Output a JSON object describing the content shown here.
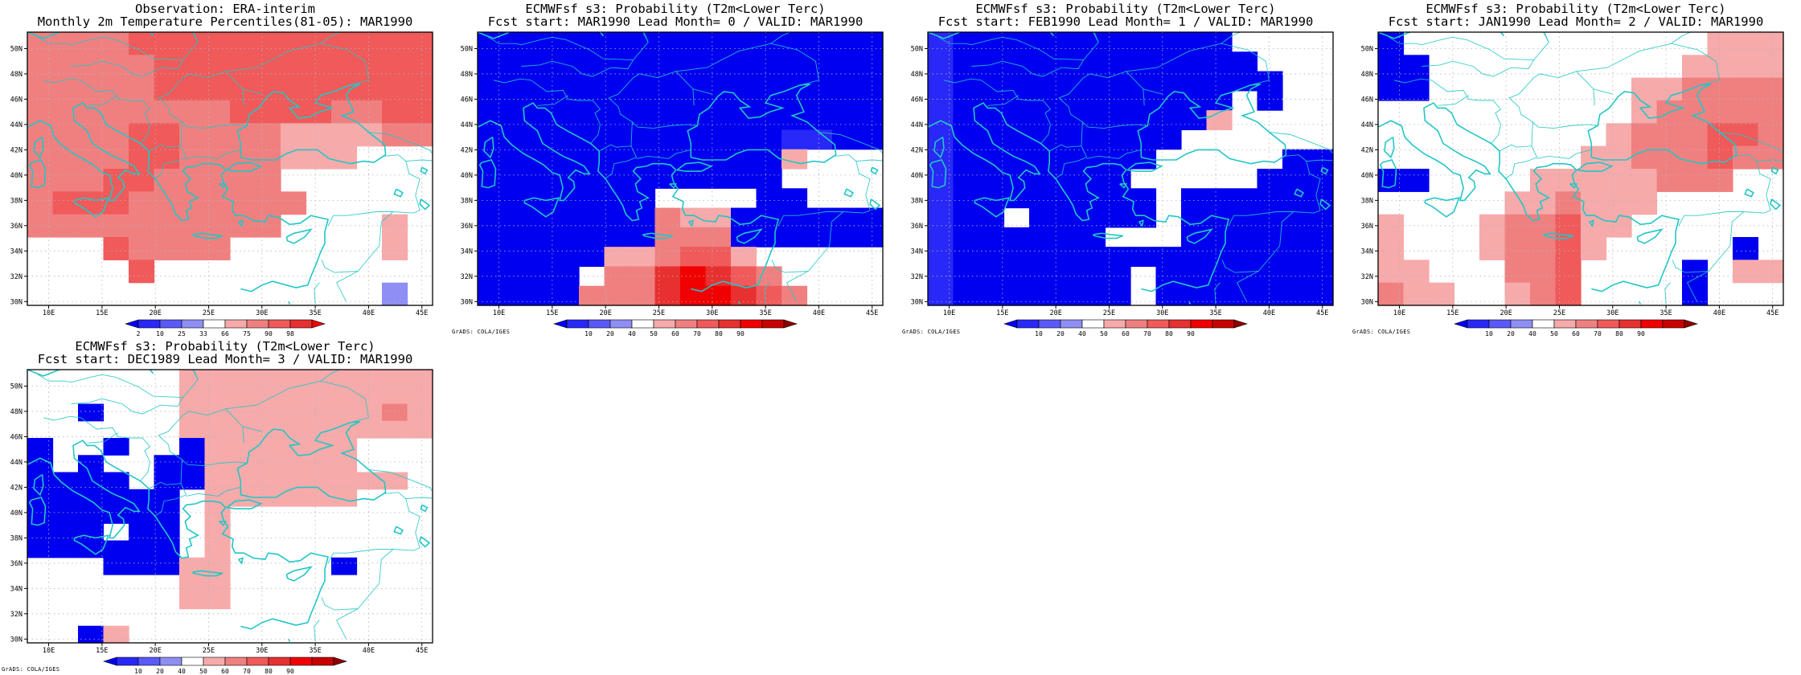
{
  "colors": {
    "coast": "#22c6c6",
    "frame": "#000000",
    "grid": "#b4b4b4",
    "palette_obs": [
      "#0000f0",
      "#2828f8",
      "#5a5af8",
      "#8e8ef4",
      "#ffffff",
      "#f7aaaa",
      "#f08080",
      "#f05a5a",
      "#e83030",
      "#f00000"
    ],
    "palette_prob": [
      "#0000f0",
      "#2828f8",
      "#5a5af8",
      "#8e8ef4",
      "#ffffff",
      "#f7aaaa",
      "#f08080",
      "#f05a5a",
      "#e83030",
      "#f00000",
      "#c80000",
      "#8c0000"
    ]
  },
  "map": {
    "lat_labels": [
      "30N",
      "32N",
      "34N",
      "36N",
      "38N",
      "40N",
      "42N",
      "44N",
      "46N",
      "48N",
      "50N"
    ],
    "lon_labels": [
      "10E",
      "15E",
      "20E",
      "25E",
      "30E",
      "35E",
      "40E",
      "45E"
    ]
  },
  "credit": "GrADS: COLA/IGES",
  "panels": [
    {
      "id": "obs",
      "title1": "Observation: ERA-interim",
      "title2": "Monthly 2m Temperature Percentiles(81-05): MAR1990",
      "colorbar_labels": [
        "2",
        "10",
        "25",
        "33",
        "66",
        "75",
        "90",
        "98"
      ],
      "palette": "palette_obs",
      "field_note": "levels 0-9 = bins between colorbar ticks",
      "grid": [
        "6666777777777777",
        "6666677777777777",
        "6666677777777777",
        "6666666677776677",
        "6666776666555566",
        "6666776666555444",
        "6667766666444444",
        "6777666666644444",
        "6666666666444454",
        "4447666644444454",
        "4444744444444444",
        "4444444444444434"
      ]
    },
    {
      "id": "lead0",
      "title1": "ECMWFsf s3: Probability (T2m<Lower Terc)",
      "title2": "Fcst start: MAR1990   Lead Month= 0 / VALID: MAR1990",
      "colorbar_labels": [
        "10",
        "20",
        "40",
        "50",
        "60",
        "70",
        "80",
        "90"
      ],
      "palette": "palette_prob",
      "grid": [
        "0000000000000000",
        "0000000000000000",
        "0000000000000000",
        "0000000000000000",
        "0000000000000000",
        "0000000000001100",
        "0000000000005444",
        "0000000000004444",
        "0000000444400444",
        "0000000655000000",
        "0000000666000000",
        "0000055677544444",
        "0000466898764444",
        "0000666899876444"
      ]
    },
    {
      "id": "lead1",
      "title1": "ECMWFsf s3: Probability (T2m<Lower Terc)",
      "title2": "Fcst start: FEB1990   Lead Month= 1 / VALID: MAR1990",
      "colorbar_labels": [
        "10",
        "20",
        "40",
        "50",
        "60",
        "70",
        "80",
        "90"
      ],
      "palette": "palette_prob",
      "grid": [
        "1000000000004444",
        "1000000000000444",
        "1000000000000044",
        "1000000000004044",
        "1000000000054444",
        "1000000000444444",
        "1000000004444400",
        "1000000044444000",
        "1000000004000000",
        "1004000004000000",
        "1000000444000000",
        "1000000000000000",
        "1000000040000000",
        "1000000040000000"
      ]
    },
    {
      "id": "lead2",
      "title1": "ECMWFsf s3: Probability (T2m<Lower Terc)",
      "title2": "Fcst start: JAN1990   Lead Month= 2 / VALID: MAR1990",
      "colorbar_labels": [
        "10",
        "20",
        "40",
        "50",
        "60",
        "70",
        "80",
        "90"
      ],
      "palette": "palette_prob",
      "grid": [
        "0444444444444555",
        "0044444444445555",
        "0044444444556666",
        "4444444444566666",
        "4444444445666776",
        "4444444455666766",
        "0044445555566644",
        "4444455655544444",
        "5444566755444444",
        "5444566754444404",
        "5544466744440455",
        "6554456744440444"
      ]
    },
    {
      "id": "lead3",
      "title1": "ECMWFsf s3: Probability (T2m<Lower Terc)",
      "title2": "Fcst start: DEC1989   Lead Month= 3 / VALID: MAR1990",
      "colorbar_labels": [
        "10",
        "20",
        "40",
        "50",
        "60",
        "70",
        "80",
        "90"
      ],
      "palette": "palette_prob",
      "grid": [
        "4444445555555555",
        "4444445555555555",
        "4404445555555565",
        "4444445555555555",
        "0440440555555444",
        "0404400555555444",
        "0000400555555554",
        "0000004555555444",
        "0000004544444444",
        "0004004544444444",
        "0000004544444444",
        "4440005544440444",
        "4444445544444444",
        "4444445544444444",
        "4444444444444444",
        "4405444444444444"
      ]
    }
  ]
}
